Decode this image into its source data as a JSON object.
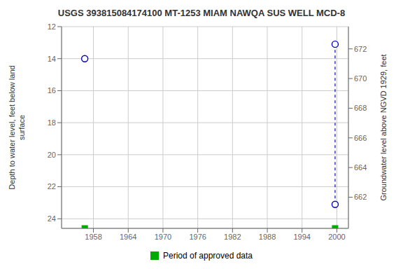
{
  "chart_data": {
    "type": "scatter",
    "title": "USGS 393815084174100 MT-1253 MIAM NAWQA SUS WELL MCD-8",
    "y_label": "Depth to water level, feet below land\nsurface",
    "y2_label": "Groundwater level above NGVD 1929, feet",
    "xlim": [
      1952.5,
      2002.0
    ],
    "xticks": [
      1958,
      1964,
      1970,
      1976,
      1982,
      1988,
      1994,
      2000
    ],
    "ylim": [
      24.6,
      12.0
    ],
    "yticks": [
      12,
      14,
      16,
      18,
      20,
      22,
      24
    ],
    "y2lim": [
      659.9,
      673.5
    ],
    "y2ticks": [
      662,
      664,
      666,
      668,
      670,
      672
    ],
    "grid": true,
    "legend": "bottom",
    "series": [
      {
        "type": "line",
        "line_style": "dashed",
        "color": "#0000CC",
        "x": [
          1999.7,
          1999.7
        ],
        "values": [
          13.1,
          23.1
        ]
      },
      {
        "type": "scatter",
        "marker": "circle",
        "color": "#0000CC",
        "x": [
          1956.5,
          1999.7,
          1999.7
        ],
        "values": [
          14.0,
          13.1,
          23.1
        ]
      },
      {
        "name": "Period of approved data",
        "type": "scatter",
        "marker": "square",
        "color": "#00AA00",
        "x": [
          1956.5,
          1999.7
        ],
        "values": [
          24.6,
          24.6
        ]
      }
    ]
  }
}
